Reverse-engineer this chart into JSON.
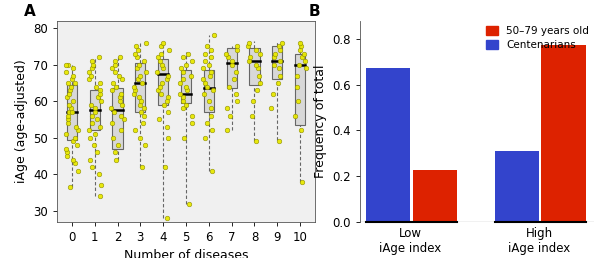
{
  "panel_A": {
    "title": "A",
    "xlabel": "Number of diseases",
    "ylabel": "iAge (age-adjusted)",
    "ylim": [
      27,
      82
    ],
    "yticks": [
      30,
      40,
      50,
      60,
      70,
      80
    ],
    "xticks": [
      0,
      1,
      2,
      3,
      4,
      5,
      6,
      7,
      8,
      9,
      10
    ],
    "dot_color": "#e8e800",
    "dot_edge_color": "#888800",
    "box_facecolor": "#d8d8d8",
    "box_edgecolor": "#666666",
    "median_color": "#000000",
    "whisker_color": "#666666",
    "bg_color": "#f0f0f0",
    "boxes": [
      {
        "x": 0,
        "q1": 49.5,
        "median": 57.0,
        "q3": 64.5,
        "whislo": 36.5,
        "whishi": 70.5
      },
      {
        "x": 1,
        "q1": 52.0,
        "median": 57.5,
        "q3": 63.0,
        "whislo": 34.0,
        "whishi": 72.0
      },
      {
        "x": 2,
        "q1": 47.0,
        "median": 57.5,
        "q3": 63.5,
        "whislo": 44.0,
        "whishi": 72.5
      },
      {
        "x": 3,
        "q1": 57.0,
        "median": 65.0,
        "q3": 70.5,
        "whislo": 42.0,
        "whishi": 76.5
      },
      {
        "x": 4,
        "q1": 59.0,
        "median": 67.5,
        "q3": 71.5,
        "whislo": 28.0,
        "whishi": 76.0
      },
      {
        "x": 5,
        "q1": 59.5,
        "median": 62.0,
        "q3": 68.5,
        "whislo": 32.0,
        "whishi": 73.5
      },
      {
        "x": 6,
        "q1": 57.0,
        "median": 63.5,
        "q3": 68.5,
        "whislo": 41.0,
        "whishi": 78.0
      },
      {
        "x": 7,
        "q1": 63.5,
        "median": 70.5,
        "q3": 74.5,
        "whislo": 52.0,
        "whishi": 75.0
      },
      {
        "x": 8,
        "q1": 64.5,
        "median": 71.0,
        "q3": 74.5,
        "whislo": 49.0,
        "whishi": 76.5
      },
      {
        "x": 9,
        "q1": 66.0,
        "median": 71.0,
        "q3": 75.0,
        "whislo": 49.5,
        "whishi": 76.5
      },
      {
        "x": 10,
        "q1": 53.5,
        "median": 70.0,
        "q3": 73.0,
        "whislo": 38.0,
        "whishi": 76.5
      }
    ],
    "jitter_data": [
      [
        36.5,
        41,
        43,
        44,
        45,
        46,
        47,
        48,
        49,
        50,
        51,
        52,
        53,
        54,
        55,
        56,
        57,
        57,
        58,
        59,
        60,
        61,
        62,
        63,
        64,
        65,
        65,
        66,
        67,
        68,
        69,
        70,
        70
      ],
      [
        34,
        37,
        40,
        42,
        44,
        46,
        48,
        50,
        51,
        52,
        53,
        54,
        55,
        56,
        57,
        58,
        59,
        60,
        61,
        62,
        63,
        64,
        65,
        66,
        67,
        68,
        69,
        70,
        71,
        72
      ],
      [
        44,
        46,
        48,
        50,
        52,
        54,
        55,
        56,
        57,
        58,
        59,
        60,
        61,
        62,
        63,
        64,
        65,
        66,
        67,
        68,
        69,
        70,
        71,
        72
      ],
      [
        42,
        48,
        50,
        52,
        54,
        56,
        57,
        58,
        59,
        60,
        61,
        62,
        63,
        64,
        65,
        66,
        67,
        68,
        69,
        70,
        71,
        72,
        73,
        74,
        75,
        76
      ],
      [
        28,
        42,
        50,
        53,
        55,
        57,
        59,
        60,
        61,
        62,
        63,
        64,
        65,
        66,
        67,
        68,
        69,
        70,
        71,
        72,
        73,
        74,
        75,
        76
      ],
      [
        32,
        50,
        54,
        56,
        58,
        59,
        60,
        61,
        62,
        63,
        64,
        65,
        66,
        67,
        68,
        69,
        70,
        71,
        72,
        73
      ],
      [
        41,
        50,
        52,
        54,
        56,
        58,
        60,
        62,
        63,
        64,
        65,
        66,
        67,
        68,
        69,
        70,
        71,
        72,
        73,
        74,
        75,
        78
      ],
      [
        52,
        56,
        58,
        60,
        62,
        64,
        66,
        68,
        70,
        71,
        72,
        73,
        74,
        75
      ],
      [
        49,
        56,
        60,
        63,
        65,
        67,
        69,
        70,
        71,
        72,
        73,
        74,
        75,
        76
      ],
      [
        49,
        58,
        62,
        65,
        67,
        69,
        70,
        71,
        72,
        73,
        74,
        75,
        76
      ],
      [
        38,
        52,
        56,
        60,
        64,
        67,
        69,
        70,
        71,
        72,
        73,
        74,
        75,
        76
      ]
    ]
  },
  "panel_B": {
    "title": "B",
    "ylabel": "Frequency of total",
    "ylim": [
      0,
      0.88
    ],
    "yticks": [
      0,
      0.2,
      0.4,
      0.6,
      0.8
    ],
    "centenarian_values": [
      0.675,
      0.31
    ],
    "fifty_values": [
      0.225,
      0.775
    ],
    "centenarian_color": "#3344cc",
    "fifty_color": "#dd2200",
    "legend_labels": [
      "50–79 years old",
      "Centenarians"
    ],
    "bar_width": 0.38,
    "group_centers": [
      0.5,
      2.0
    ],
    "group_labels": [
      "Low\niAge index",
      "High\niAge index"
    ]
  },
  "fig_bg": "#ffffff",
  "title_fontsize": 11,
  "label_fontsize": 9,
  "tick_fontsize": 8.5
}
